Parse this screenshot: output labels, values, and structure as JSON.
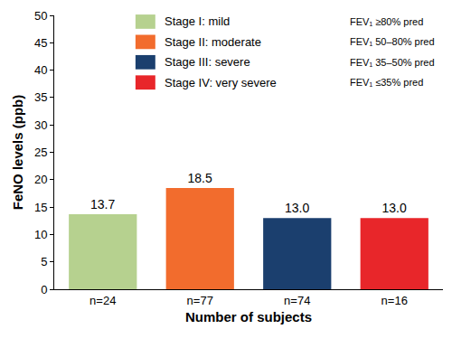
{
  "chart_data": {
    "type": "bar",
    "categories": [
      "n=24",
      "n=77",
      "n=74",
      "n=16"
    ],
    "x_label": "Number of subjects",
    "y_label": "FeNO levels (ppb)",
    "series": [
      {
        "name": "Stage I: mild",
        "color": "#b6d18f",
        "values": [
          13.7,
          null,
          null,
          null
        ],
        "value_labels": [
          "13.7",
          null,
          null,
          null
        ]
      },
      {
        "name": "Stage II: moderate",
        "color": "#f26c2d",
        "values": [
          null,
          18.5,
          null,
          null
        ],
        "value_labels": [
          null,
          "18.5",
          null,
          null
        ]
      },
      {
        "name": "Stage III: severe",
        "color": "#1b3f6e",
        "values": [
          null,
          null,
          13.0,
          null
        ],
        "value_labels": [
          null,
          null,
          "13.0",
          null
        ]
      },
      {
        "name": "Stage IV: very severe",
        "color": "#e8262a",
        "values": [
          null,
          null,
          null,
          13.0
        ],
        "value_labels": [
          null,
          null,
          null,
          "13.0"
        ]
      }
    ],
    "annotations": [
      "FEV₁ ≥80% pred",
      "FEV₁ 50–80% pred",
      "FEV₁ 35–50% pred",
      "FEV₁ ≤35% pred"
    ],
    "ylim": [
      0,
      50
    ],
    "yticks": [
      0,
      5,
      10,
      15,
      20,
      25,
      30,
      35,
      40,
      45,
      50
    ],
    "grid": false,
    "legend": "upper right",
    "data_labels": true
  }
}
